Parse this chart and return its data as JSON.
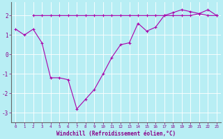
{
  "line1_x": [
    0,
    1,
    2,
    3,
    4,
    5,
    6,
    7,
    8,
    9,
    10,
    11,
    12,
    13,
    14,
    15,
    16,
    17,
    18,
    19,
    20,
    21,
    22,
    23
  ],
  "line1_y": [
    1.3,
    1.0,
    1.3,
    0.6,
    -1.2,
    -1.2,
    -1.3,
    -2.8,
    -2.3,
    -1.8,
    -1.0,
    -0.15,
    0.5,
    0.6,
    1.6,
    1.2,
    1.4,
    2.0,
    2.15,
    2.3,
    2.2,
    2.1,
    2.0,
    2.0
  ],
  "line2_x": [
    2,
    3,
    4,
    5,
    6,
    7,
    8,
    9,
    10,
    11,
    12,
    13,
    14,
    15,
    16,
    17,
    18,
    19,
    20,
    21,
    22,
    23
  ],
  "line2_y": [
    2.0,
    2.0,
    2.0,
    2.0,
    2.0,
    2.0,
    2.0,
    2.0,
    2.0,
    2.0,
    2.0,
    2.0,
    2.0,
    2.0,
    2.0,
    2.0,
    2.0,
    2.0,
    2.0,
    2.1,
    2.3,
    2.0
  ],
  "color": "#aa00aa",
  "bg_color": "#b8eef4",
  "grid_color": "#ffffff",
  "xlabel": "Windchill (Refroidissement éolien,°C)",
  "xlim": [
    -0.5,
    23.5
  ],
  "ylim": [
    -3.5,
    2.7
  ],
  "xticks": [
    0,
    1,
    2,
    3,
    4,
    5,
    6,
    7,
    8,
    9,
    10,
    11,
    12,
    13,
    14,
    15,
    16,
    17,
    18,
    19,
    20,
    21,
    22,
    23
  ],
  "yticks": [
    -3,
    -2,
    -1,
    0,
    1,
    2
  ]
}
